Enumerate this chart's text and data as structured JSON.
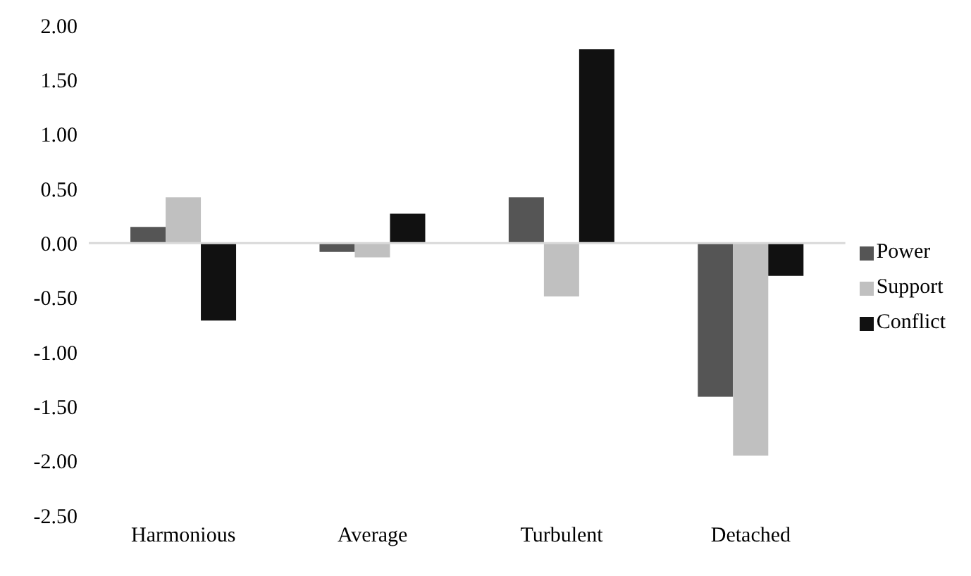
{
  "chart_data": {
    "type": "bar",
    "categories": [
      "Harmonious",
      "Average",
      "Turbulent",
      "Detached"
    ],
    "series": [
      {
        "name": "Power",
        "color": "#555555",
        "values": [
          0.15,
          -0.08,
          0.42,
          -1.41
        ]
      },
      {
        "name": "Support",
        "color": "#c0c0c0",
        "values": [
          0.42,
          -0.13,
          -0.49,
          -1.95
        ]
      },
      {
        "name": "Conflict",
        "color": "#111111",
        "values": [
          -0.71,
          0.27,
          1.78,
          -0.3
        ]
      }
    ],
    "ylim": [
      -2.5,
      2
    ],
    "yticks": [
      {
        "value": 2,
        "label": "2.00"
      },
      {
        "value": 1.5,
        "label": "1.50"
      },
      {
        "value": 1,
        "label": "1.00"
      },
      {
        "value": 0.5,
        "label": "0.50"
      },
      {
        "value": 0,
        "label": "0.00"
      },
      {
        "value": -0.5,
        "label": "-0.50"
      },
      {
        "value": -1,
        "label": "-1.00"
      },
      {
        "value": -1.5,
        "label": "-1.50"
      },
      {
        "value": -2,
        "label": "-2.00"
      },
      {
        "value": -2.5,
        "label": "-2.50"
      }
    ],
    "legend": "right"
  }
}
